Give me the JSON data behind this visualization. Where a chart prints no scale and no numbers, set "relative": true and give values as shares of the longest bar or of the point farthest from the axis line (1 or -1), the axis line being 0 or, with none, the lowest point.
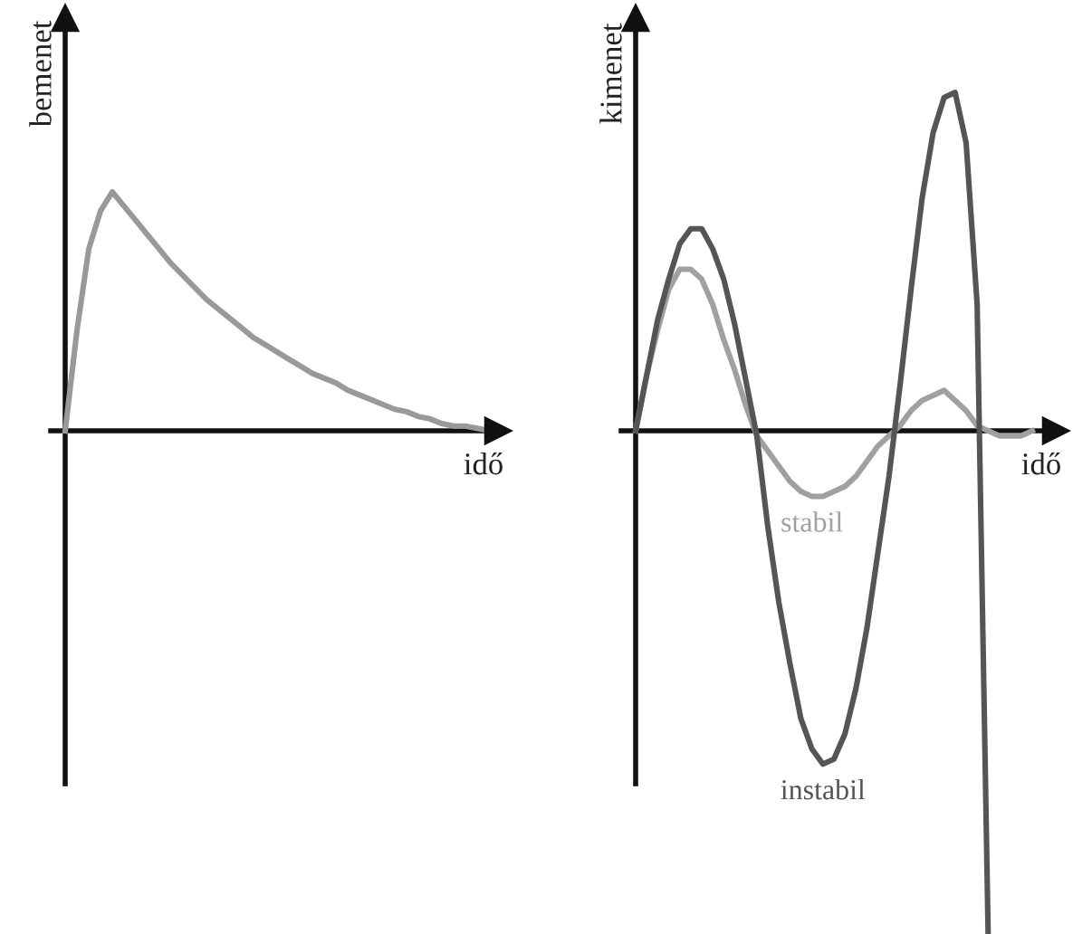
{
  "chart_data": [
    {
      "type": "line",
      "relative": true,
      "ylabel": "bemenet",
      "xlabel": "idő",
      "categories": [
        null,
        null,
        null,
        null,
        null,
        null,
        null,
        null,
        null,
        null,
        null,
        null,
        null,
        null,
        null,
        null,
        null,
        null,
        null,
        null,
        null,
        null,
        null,
        null,
        null,
        null,
        null,
        null,
        null,
        null,
        null,
        null,
        null,
        null,
        null,
        null,
        null
      ],
      "series": [
        {
          "color": "#999999",
          "values": [
            0,
            0.42,
            0.76,
            0.92,
            1,
            0.94,
            0.88,
            0.82,
            0.76,
            0.7,
            0.65,
            0.6,
            0.55,
            0.51,
            0.47,
            0.43,
            0.39,
            0.36,
            0.33,
            0.3,
            0.27,
            0.24,
            0.22,
            0.2,
            0.17,
            0.15,
            0.13,
            0.11,
            0.09,
            0.08,
            0.06,
            0.05,
            0.03,
            0.02,
            0.02,
            0.01,
            0
          ]
        }
      ],
      "legend": false
    },
    {
      "type": "line",
      "relative": true,
      "ylabel": "kimenet",
      "xlabel": "idő",
      "categories": [
        null,
        null,
        null,
        null,
        null,
        null,
        null,
        null,
        null,
        null,
        null,
        null,
        null,
        null,
        null,
        null,
        null,
        null,
        null,
        null,
        null,
        null,
        null,
        null,
        null,
        null,
        null,
        null,
        null,
        null,
        null,
        null,
        null,
        null,
        null,
        null,
        null
      ],
      "series": [
        {
          "name": "stabil",
          "color": "#a0a0a0",
          "values": [
            0,
            0.11,
            0.2,
            0.28,
            0.32,
            0.32,
            0.3,
            0.25,
            0.18,
            0.12,
            0.05,
            -0.01,
            -0.04,
            -0.07,
            -0.1,
            -0.12,
            -0.13,
            -0.13,
            -0.12,
            -0.11,
            -0.09,
            -0.06,
            -0.03,
            -0.01,
            0.01,
            0.04,
            0.06,
            0.07,
            0.08,
            0.06,
            0.04,
            0.01,
            0,
            -0.01,
            -0.01,
            -0.01,
            0
          ]
        },
        {
          "name": "instabil",
          "color": "#555555",
          "values": [
            0,
            0.11,
            0.22,
            0.3,
            0.37,
            0.4,
            0.4,
            0.36,
            0.3,
            0.21,
            0.1,
            -0.01,
            -0.19,
            -0.34,
            -0.46,
            -0.57,
            -0.63,
            -0.66,
            -0.65,
            -0.6,
            -0.51,
            -0.39,
            -0.24,
            -0.09,
            0.09,
            0.28,
            0.46,
            0.59,
            0.66,
            0.67,
            0.57,
            0.25,
            -1,
            null,
            null,
            null,
            null
          ]
        }
      ],
      "legend": false
    }
  ]
}
